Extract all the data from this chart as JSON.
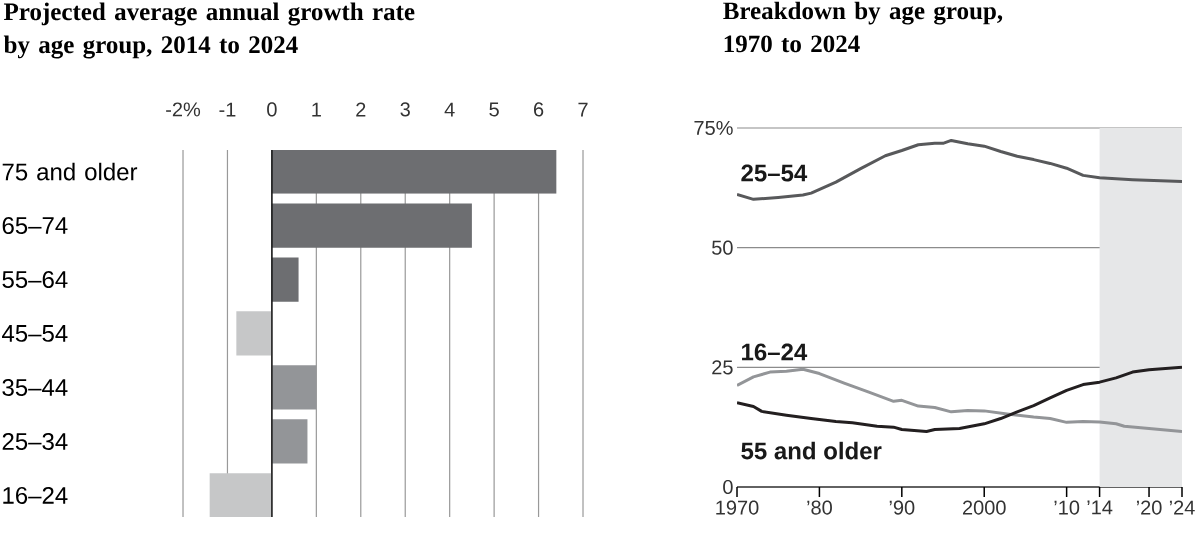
{
  "chart_data": [
    {
      "type": "bar",
      "orientation": "horizontal",
      "title": "Projected average annual growth rate by age group, 2014 to 2024",
      "categories": [
        "75 and older",
        "65–74",
        "55–64",
        "45–54",
        "35–44",
        "25–34",
        "16–24"
      ],
      "values": [
        6.4,
        4.5,
        0.6,
        -0.8,
        1.0,
        0.8,
        -1.4
      ],
      "colors": [
        "#6d6e71",
        "#6d6e71",
        "#6d6e71",
        "#c6c7c8",
        "#939598",
        "#939598",
        "#c6c7c8"
      ],
      "xlim": [
        -2,
        7
      ],
      "xticks": [
        {
          "value": -2,
          "label": "-2%"
        },
        -1,
        0,
        1,
        2,
        3,
        4,
        5,
        6,
        7
      ],
      "grid": "x"
    },
    {
      "type": "line",
      "title": "Breakdown by age group, 1970 to 2024",
      "xlim": [
        1970,
        2024
      ],
      "xticks": [
        1970,
        {
          "value": 1980,
          "label": "’80"
        },
        {
          "value": 1990,
          "label": "’90"
        },
        2000,
        {
          "value": 2010,
          "label": "’10"
        },
        {
          "value": 2014,
          "label": "’14"
        },
        {
          "value": 2020,
          "label": "’20"
        },
        {
          "value": 2024,
          "label": "’24"
        }
      ],
      "ylim": [
        0,
        75
      ],
      "yticks": [
        0,
        25,
        50,
        {
          "value": 75,
          "label": "75%"
        }
      ],
      "grid": "y",
      "bands": [
        {
          "axis": "x",
          "from": 2014,
          "to": 2024,
          "color": "#e6e7e8"
        }
      ],
      "series": [
        {
          "name": "25–54",
          "color": "#58595b",
          "x": [
            1970,
            1972,
            1975,
            1978,
            1979,
            1982,
            1985,
            1988,
            1990,
            1992,
            1994,
            1995,
            1996,
            1998,
            2000,
            2002,
            2004,
            2006,
            2008,
            2010,
            2012,
            2014,
            2018,
            2024
          ],
          "values": [
            61.1,
            60.1,
            60.5,
            61.0,
            61.4,
            63.7,
            66.5,
            69.2,
            70.3,
            71.5,
            71.8,
            71.8,
            72.4,
            71.7,
            71.2,
            70.1,
            69.1,
            68.4,
            67.6,
            66.6,
            65.1,
            64.6,
            64.2,
            63.8
          ]
        },
        {
          "name": "16–24",
          "color": "#939598",
          "x": [
            1970,
            1972,
            1974,
            1976,
            1978,
            1980,
            1983,
            1986,
            1989,
            1990,
            1992,
            1994,
            1996,
            1998,
            2000,
            2003,
            2006,
            2008,
            2010,
            2012,
            2014,
            2016,
            2017,
            2020,
            2024
          ],
          "values": [
            21.2,
            23.0,
            24.0,
            24.2,
            24.6,
            23.7,
            21.7,
            19.8,
            17.9,
            18.1,
            16.9,
            16.6,
            15.7,
            16.0,
            15.9,
            15.2,
            14.6,
            14.3,
            13.5,
            13.7,
            13.6,
            13.2,
            12.7,
            12.2,
            11.6
          ]
        },
        {
          "name": "55 and older",
          "color": "#231f20",
          "x": [
            1970,
            1972,
            1973,
            1976,
            1979,
            1982,
            1984,
            1987,
            1989,
            1990,
            1993,
            1994,
            1997,
            2000,
            2002,
            2004,
            2006,
            2008,
            2010,
            2012,
            2014,
            2016,
            2018,
            2020,
            2024
          ],
          "values": [
            17.6,
            16.8,
            15.8,
            15.0,
            14.3,
            13.7,
            13.4,
            12.7,
            12.5,
            12.0,
            11.6,
            12.0,
            12.2,
            13.2,
            14.3,
            15.7,
            17.0,
            18.6,
            20.2,
            21.4,
            21.9,
            22.8,
            24.0,
            24.5,
            25.0
          ]
        }
      ]
    }
  ]
}
